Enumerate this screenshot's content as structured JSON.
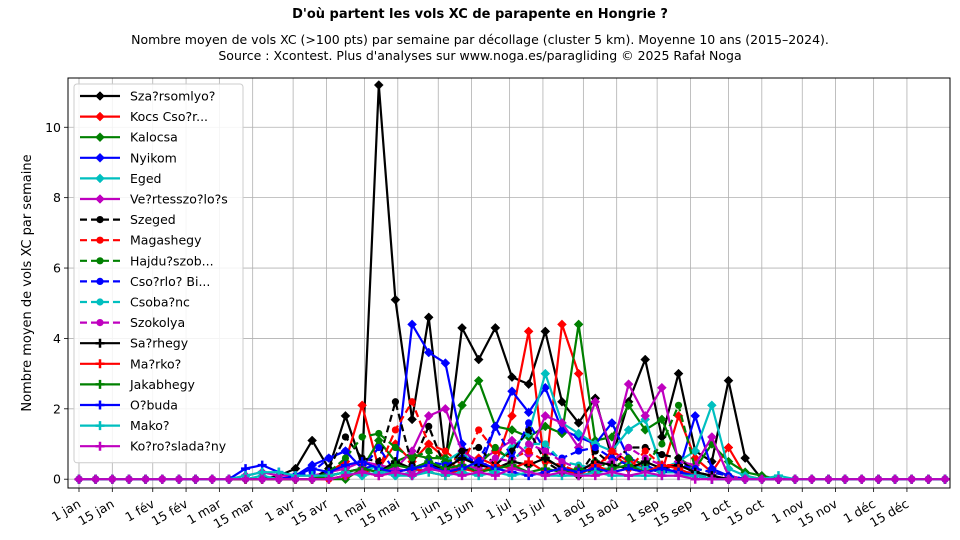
{
  "chart_data": {
    "type": "line",
    "title": "D'où partent les vols XC de parapente en Hongrie ?",
    "subtitle_lines": [
      "Nombre moyen de vols XC (>100 pts) par semaine par décollage (cluster 5 km). Moyenne 10 ans (2015–2024).",
      "Source : Xcontest. Plus d'analyses sur www.noga.es/paragliding © 2025 Rafał Noga"
    ],
    "ylabel": "Nombre moyen de vols XC par semaine",
    "xlabel": "",
    "x_ticks": [
      "1 jan",
      "15 jan",
      "1 fév",
      "15 fév",
      "1 mar",
      "15 mar",
      "1 avr",
      "15 avr",
      "1 mai",
      "15 mai",
      "1 jun",
      "15 jun",
      "1 jul",
      "15 jul",
      "1 aoû",
      "15 aoû",
      "1 sep",
      "15 sep",
      "1 oct",
      "15 oct",
      "1 nov",
      "15 nov",
      "1 déc",
      "15 déc"
    ],
    "y_ticks": [
      0,
      2,
      4,
      6,
      8,
      10
    ],
    "ylim": [
      -0.25,
      11.4
    ],
    "xlim_weeks": [
      0,
      52.3
    ],
    "grid": true,
    "legend_position": "top-left",
    "series": [
      {
        "name": "Sza?rsomlyo?",
        "color": "#000000",
        "dash": "solid",
        "marker": "diamond",
        "values": [
          0,
          0,
          0,
          0,
          0,
          0,
          0,
          0,
          0,
          0,
          0,
          0,
          0.1,
          0.3,
          1.1,
          0.3,
          1.8,
          0.4,
          11.2,
          5.1,
          1.7,
          4.6,
          0.5,
          4.3,
          3.4,
          4.3,
          2.9,
          2.7,
          4.2,
          2.2,
          1.6,
          2.3,
          0.6,
          2.2,
          3.4,
          1.2,
          3.0,
          0.8,
          0.5,
          2.8,
          0.6,
          0,
          0,
          0,
          0,
          0,
          0,
          0,
          0,
          0,
          0,
          0,
          0
        ]
      },
      {
        "name": "Kocs Cso?r...",
        "color": "#ff0000",
        "dash": "solid",
        "marker": "diamond",
        "values": [
          0,
          0,
          0,
          0,
          0,
          0,
          0,
          0,
          0,
          0,
          0,
          0,
          0,
          0,
          0,
          0.2,
          0.5,
          2.1,
          0.3,
          1.0,
          0.5,
          1.0,
          0.6,
          0.2,
          0.6,
          0.4,
          1.8,
          4.2,
          0.2,
          4.4,
          3.0,
          0.3,
          0.8,
          0.5,
          0.3,
          0.2,
          1.8,
          0.6,
          0.2,
          0.9,
          0.1,
          0,
          0,
          0,
          0,
          0,
          0,
          0,
          0,
          0,
          0,
          0,
          0
        ]
      },
      {
        "name": "Kalocsa",
        "color": "#008000",
        "dash": "solid",
        "marker": "diamond",
        "values": [
          0,
          0,
          0,
          0,
          0,
          0,
          0,
          0,
          0,
          0,
          0,
          0,
          0,
          0,
          0,
          0,
          0,
          0.3,
          1.1,
          0.5,
          0.7,
          0.6,
          0.6,
          2.1,
          2.8,
          1.5,
          1.4,
          1.2,
          1.5,
          1.3,
          4.4,
          1.1,
          1.2,
          2.1,
          1.4,
          1.7,
          0.6,
          0.3,
          1.0,
          0.5,
          0.2,
          0.1,
          0,
          0,
          0,
          0,
          0,
          0,
          0,
          0,
          0,
          0,
          0
        ]
      },
      {
        "name": "Nyikom",
        "color": "#0000ff",
        "dash": "solid",
        "marker": "diamond",
        "values": [
          0,
          0,
          0,
          0,
          0,
          0,
          0,
          0,
          0,
          0,
          0,
          0,
          0,
          0.1,
          0.4,
          0.6,
          0.8,
          0.3,
          0.4,
          0.2,
          4.4,
          3.6,
          3.3,
          1.0,
          0.2,
          1.5,
          2.5,
          1.9,
          2.6,
          1.4,
          1.2,
          1.0,
          1.6,
          0.6,
          0.4,
          0.2,
          0.2,
          1.8,
          0.3,
          0.1,
          0,
          0,
          0,
          0,
          0,
          0,
          0,
          0,
          0,
          0,
          0,
          0,
          0
        ]
      },
      {
        "name": "Eged",
        "color": "#00bfbf",
        "dash": "solid",
        "marker": "diamond",
        "values": [
          0,
          0,
          0,
          0,
          0,
          0,
          0,
          0,
          0,
          0,
          0,
          0.1,
          0,
          0,
          0,
          0,
          0.1,
          0.2,
          0.4,
          0.2,
          0.1,
          0.3,
          0.5,
          0.8,
          0.2,
          0.4,
          0.9,
          1.3,
          3.0,
          1.6,
          1.3,
          1.0,
          0.8,
          1.4,
          1.7,
          0.3,
          0.5,
          0.8,
          2.1,
          0.3,
          0.1,
          0,
          0,
          0,
          0,
          0,
          0,
          0,
          0,
          0,
          0,
          0,
          0
        ]
      },
      {
        "name": "Ve?rtesszo?lo?s",
        "color": "#bf00bf",
        "dash": "solid",
        "marker": "diamond",
        "values": [
          0,
          0,
          0,
          0,
          0,
          0,
          0,
          0,
          0,
          0,
          0.1,
          0.2,
          0.1,
          0.1,
          0.1,
          0.2,
          0.3,
          0.5,
          0.4,
          0.3,
          0.8,
          1.8,
          2.0,
          0.8,
          0.5,
          0.8,
          1.1,
          0.7,
          1.8,
          1.6,
          0.9,
          2.2,
          0.8,
          2.7,
          1.8,
          2.6,
          0.5,
          0.4,
          1.2,
          0.1,
          0,
          0,
          0,
          0,
          0,
          0,
          0,
          0,
          0,
          0,
          0,
          0,
          0
        ]
      },
      {
        "name": "Szeged",
        "color": "#000000",
        "dash": "dashed",
        "marker": "circle",
        "values": [
          0,
          0,
          0,
          0,
          0,
          0,
          0,
          0,
          0,
          0,
          0,
          0,
          0,
          0,
          0,
          0.3,
          1.2,
          0.6,
          0.5,
          2.2,
          0.4,
          1.5,
          0.3,
          0.8,
          0.9,
          0.4,
          0.8,
          1.4,
          0.5,
          0.2,
          0.1,
          0.8,
          0.4,
          0.9,
          0.9,
          0.7,
          0.6,
          0.2,
          0.1,
          0,
          0,
          0,
          0,
          0,
          0,
          0,
          0,
          0,
          0,
          0,
          0,
          0,
          0
        ]
      },
      {
        "name": "Magashegy",
        "color": "#ff0000",
        "dash": "dashed",
        "marker": "circle",
        "values": [
          0,
          0,
          0,
          0,
          0,
          0,
          0,
          0,
          0,
          0,
          0,
          0,
          0,
          0,
          0,
          0,
          0.1,
          0.2,
          0.3,
          1.4,
          2.2,
          1.0,
          0.8,
          0.4,
          1.4,
          0.8,
          0.6,
          0.8,
          0.5,
          0.4,
          0.2,
          0.2,
          0.8,
          0.3,
          0.8,
          0.4,
          0.4,
          0.2,
          0.1,
          0,
          0,
          0,
          0,
          0,
          0,
          0,
          0,
          0,
          0,
          0,
          0,
          0,
          0
        ]
      },
      {
        "name": "Hajdu?szob...",
        "color": "#008000",
        "dash": "dashed",
        "marker": "circle",
        "values": [
          0,
          0,
          0,
          0,
          0,
          0,
          0,
          0,
          0,
          0,
          0,
          0,
          0,
          0,
          0,
          0.2,
          0.6,
          1.2,
          1.3,
          0.9,
          0.6,
          0.8,
          0.5,
          0.6,
          0.4,
          0.9,
          0.5,
          0.4,
          0.6,
          0.3,
          0.2,
          0.5,
          0.3,
          0.6,
          0.4,
          1.0,
          2.1,
          0.3,
          0.2,
          0.1,
          0,
          0,
          0,
          0,
          0,
          0,
          0,
          0,
          0,
          0,
          0,
          0,
          0
        ]
      },
      {
        "name": "Cso?rlo? Bi...",
        "color": "#0000ff",
        "dash": "dashed",
        "marker": "circle",
        "values": [
          0,
          0,
          0,
          0,
          0,
          0,
          0,
          0,
          0,
          0,
          0,
          0,
          0,
          0.1,
          0.2,
          0.6,
          0.8,
          0.3,
          0.9,
          0.2,
          0.3,
          0.5,
          0.4,
          0.6,
          0.5,
          1.5,
          0.6,
          1.6,
          0.8,
          0.6,
          0.8,
          0.9,
          0.6,
          0.4,
          0.3,
          0.2,
          0.4,
          0.3,
          0.2,
          0.1,
          0,
          0,
          0,
          0,
          0,
          0,
          0,
          0,
          0,
          0,
          0,
          0,
          0
        ]
      },
      {
        "name": "Csoba?nc",
        "color": "#00bfbf",
        "dash": "dashed",
        "marker": "circle",
        "values": [
          0,
          0,
          0,
          0,
          0,
          0,
          0,
          0,
          0,
          0,
          0,
          0,
          0,
          0,
          0,
          0.1,
          0.2,
          0.1,
          0.3,
          0.1,
          0.2,
          0.4,
          0.2,
          0.3,
          0.3,
          0.2,
          0.5,
          1.0,
          1.0,
          0.5,
          0.4,
          0.3,
          0.3,
          0.4,
          0.3,
          0.2,
          0.2,
          0.1,
          0.1,
          0,
          0,
          0,
          0,
          0,
          0,
          0,
          0,
          0,
          0,
          0,
          0,
          0,
          0
        ]
      },
      {
        "name": "Szokolya",
        "color": "#bf00bf",
        "dash": "dashed",
        "marker": "circle",
        "values": [
          0,
          0,
          0,
          0,
          0,
          0,
          0,
          0,
          0,
          0,
          0,
          0,
          0,
          0,
          0,
          0.1,
          0.2,
          0.3,
          0.2,
          0.3,
          0.2,
          0.3,
          0.2,
          0.4,
          0.3,
          0.6,
          0.5,
          1.0,
          0.8,
          0.5,
          0.3,
          0.4,
          0.5,
          0.9,
          0.6,
          0.4,
          0.2,
          0.2,
          0.1,
          0,
          0,
          0,
          0,
          0,
          0,
          0,
          0,
          0,
          0,
          0,
          0,
          0,
          0
        ]
      },
      {
        "name": "Sa?rhegy",
        "color": "#000000",
        "dash": "solid",
        "marker": "plus",
        "values": [
          0,
          0,
          0,
          0,
          0,
          0,
          0,
          0,
          0,
          0,
          0,
          0,
          0,
          0,
          0,
          0.1,
          0.2,
          0.3,
          0.2,
          0.5,
          0.3,
          0.4,
          0.3,
          0.6,
          0.4,
          0.3,
          0.5,
          0.4,
          0.6,
          0.3,
          0.2,
          0.5,
          0.4,
          0.3,
          0.5,
          0.3,
          0.4,
          0.2,
          0.1,
          0,
          0,
          0,
          0,
          0,
          0,
          0,
          0,
          0,
          0,
          0,
          0,
          0,
          0
        ]
      },
      {
        "name": "Ma?rko?",
        "color": "#ff0000",
        "dash": "solid",
        "marker": "plus",
        "values": [
          0,
          0,
          0,
          0,
          0,
          0,
          0,
          0,
          0,
          0,
          0,
          0,
          0,
          0,
          0,
          0,
          0.1,
          0.2,
          0.1,
          0.2,
          0.3,
          0.2,
          0.1,
          0.3,
          0.2,
          0.4,
          0.3,
          0.5,
          0.2,
          0.3,
          0.1,
          0.4,
          0.2,
          0.3,
          0.2,
          0.4,
          0.3,
          0.1,
          0,
          0,
          0,
          0,
          0,
          0,
          0,
          0,
          0,
          0,
          0,
          0,
          0,
          0,
          0
        ]
      },
      {
        "name": "Jakabhegy",
        "color": "#008000",
        "dash": "solid",
        "marker": "plus",
        "values": [
          0,
          0,
          0,
          0,
          0,
          0,
          0,
          0,
          0,
          0,
          0,
          0,
          0,
          0,
          0,
          0.1,
          0.2,
          0.3,
          0.2,
          0.4,
          0.3,
          0.5,
          0.3,
          0.4,
          0.2,
          0.3,
          0.4,
          0.2,
          0.3,
          0.2,
          0.3,
          0.2,
          0.3,
          0.4,
          0.2,
          0.3,
          0.2,
          0.1,
          0,
          0,
          0,
          0,
          0,
          0,
          0,
          0,
          0,
          0,
          0,
          0,
          0,
          0,
          0
        ]
      },
      {
        "name": "O?buda",
        "color": "#0000ff",
        "dash": "solid",
        "marker": "plus",
        "values": [
          0,
          0,
          0,
          0,
          0,
          0,
          0,
          0,
          0,
          0,
          0.3,
          0.4,
          0.2,
          0.1,
          0.3,
          0.2,
          0.4,
          0.5,
          0.3,
          0.2,
          0.3,
          0.4,
          0.2,
          0.3,
          0.5,
          0.3,
          0.2,
          0.1,
          0.2,
          0.3,
          0.2,
          0.3,
          0.2,
          0.3,
          0.2,
          0.3,
          0.2,
          0.1,
          0,
          0,
          0,
          0,
          0,
          0,
          0,
          0,
          0,
          0,
          0,
          0,
          0,
          0,
          0
        ]
      },
      {
        "name": "Mako?",
        "color": "#00bfbf",
        "dash": "solid",
        "marker": "plus",
        "values": [
          0,
          0,
          0,
          0,
          0,
          0,
          0,
          0,
          0,
          0,
          0.1,
          0.2,
          0.2,
          0.1,
          0.1,
          0.1,
          0.2,
          0.1,
          0.2,
          0.1,
          0.1,
          0.2,
          0.1,
          0.2,
          0.1,
          0.2,
          0.1,
          0.2,
          0.1,
          0.1,
          0.1,
          0.2,
          0.1,
          0.1,
          0.1,
          0.1,
          0.1,
          0.1,
          0,
          0,
          0,
          0,
          0.1,
          0,
          0,
          0,
          0,
          0,
          0,
          0,
          0,
          0,
          0
        ]
      },
      {
        "name": "Ko?ro?slada?ny",
        "color": "#bf00bf",
        "dash": "solid",
        "marker": "plus",
        "values": [
          0,
          0,
          0,
          0,
          0,
          0,
          0,
          0,
          0,
          0,
          0,
          0,
          0,
          0,
          0,
          0,
          0.1,
          0.2,
          0.1,
          0.2,
          0.1,
          0.3,
          0.2,
          0.1,
          0.2,
          0.1,
          0.3,
          0.2,
          0.1,
          0.2,
          0.1,
          0.1,
          0.2,
          0.1,
          0.2,
          0.1,
          0.1,
          0,
          0,
          0,
          0,
          0,
          0,
          0,
          0,
          0,
          0,
          0,
          0,
          0,
          0,
          0,
          0
        ]
      }
    ]
  }
}
